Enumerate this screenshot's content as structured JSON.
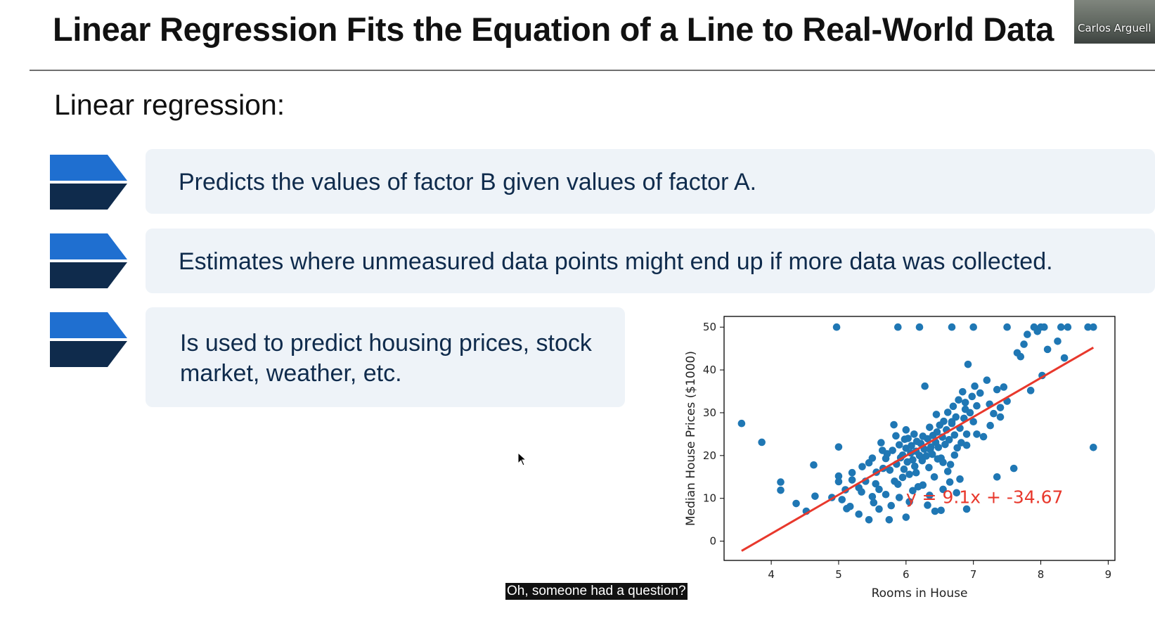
{
  "slide": {
    "title": "Linear Regression Fits the Equation of a Line to Real-World Data",
    "subtitle": "Linear regression:",
    "bullets": [
      {
        "text": "Predicts the values of factor B given values of factor A."
      },
      {
        "text": "Estimates where unmeasured data points might end up if more data was collected."
      },
      {
        "text": "Is used to predict housing prices, stock market, weather, etc."
      }
    ]
  },
  "participant": {
    "name": "Carlos Arguell"
  },
  "caption": {
    "text": "Oh, someone had a question?"
  },
  "colors": {
    "point": "#1f77b4",
    "fit_line": "#e8382c",
    "arrow_top": "#1f6fd0",
    "arrow_bottom": "#0f2b4c",
    "bullet_text": "#0f2b4c",
    "bullet_box": "#eef3f8"
  },
  "icons": {
    "bullet": "chevron-arrow-icon",
    "cursor": "mouse-pointer-icon"
  },
  "chart_data": {
    "type": "scatter",
    "xlabel": "Rooms in House",
    "ylabel": "Median House Prices ($1000)",
    "xlim": [
      3.3,
      9.1
    ],
    "ylim": [
      -4.5,
      52.5
    ],
    "xticks": [
      4,
      5,
      6,
      7,
      8,
      9
    ],
    "yticks": [
      0,
      10,
      20,
      30,
      40,
      50
    ],
    "grid": false,
    "annotation": "y = 9.1x + -34.67",
    "fit_line": {
      "slope": 9.1,
      "intercept": -34.67,
      "x_range": [
        3.56,
        8.78
      ]
    },
    "series": [
      {
        "points": [
          [
            3.56,
            27.5
          ],
          [
            3.86,
            23.1
          ],
          [
            4.14,
            13.8
          ],
          [
            4.14,
            11.9
          ],
          [
            4.37,
            8.8
          ],
          [
            4.52,
            7.0
          ],
          [
            4.63,
            17.8
          ],
          [
            4.65,
            10.5
          ],
          [
            4.9,
            10.2
          ],
          [
            5.0,
            13.9
          ],
          [
            5.0,
            15.2
          ],
          [
            5.0,
            22.0
          ],
          [
            5.05,
            9.7
          ],
          [
            5.1,
            12.0
          ],
          [
            5.12,
            7.6
          ],
          [
            5.17,
            8.1
          ],
          [
            5.2,
            16.0
          ],
          [
            5.3,
            12.5
          ],
          [
            5.34,
            11.5
          ],
          [
            5.4,
            14.0
          ],
          [
            5.45,
            18.3
          ],
          [
            5.5,
            10.4
          ],
          [
            5.52,
            9.0
          ],
          [
            5.56,
            16.1
          ],
          [
            5.6,
            12.1
          ],
          [
            5.63,
            23.0
          ],
          [
            5.66,
            17.0
          ],
          [
            5.7,
            19.3
          ],
          [
            5.72,
            20.4
          ],
          [
            5.76,
            16.6
          ],
          [
            5.8,
            21.2
          ],
          [
            5.82,
            27.2
          ],
          [
            5.83,
            14.0
          ],
          [
            5.86,
            18.0
          ],
          [
            5.88,
            13.3
          ],
          [
            5.9,
            22.5
          ],
          [
            5.92,
            19.5
          ],
          [
            5.95,
            20.1
          ],
          [
            5.97,
            16.8
          ],
          [
            5.98,
            23.8
          ],
          [
            6.0,
            21.7
          ],
          [
            6.02,
            18.5
          ],
          [
            6.03,
            24.0
          ],
          [
            6.05,
            15.6
          ],
          [
            6.07,
            20.6
          ],
          [
            6.08,
            22.3
          ],
          [
            6.1,
            19.0
          ],
          [
            6.12,
            25.0
          ],
          [
            6.13,
            17.5
          ],
          [
            6.15,
            21.0
          ],
          [
            6.16,
            23.3
          ],
          [
            6.18,
            12.7
          ],
          [
            6.2,
            20.0
          ],
          [
            6.22,
            22.8
          ],
          [
            6.24,
            18.8
          ],
          [
            6.25,
            24.5
          ],
          [
            6.27,
            21.5
          ],
          [
            6.28,
            36.2
          ],
          [
            6.3,
            19.9
          ],
          [
            6.32,
            23.9
          ],
          [
            6.34,
            17.2
          ],
          [
            6.35,
            26.6
          ],
          [
            6.37,
            22.0
          ],
          [
            6.39,
            20.3
          ],
          [
            6.4,
            24.7
          ],
          [
            6.42,
            15.0
          ],
          [
            6.44,
            23.1
          ],
          [
            6.46,
            25.5
          ],
          [
            6.48,
            21.9
          ],
          [
            6.5,
            27.1
          ],
          [
            6.52,
            19.4
          ],
          [
            6.54,
            24.3
          ],
          [
            6.56,
            28.0
          ],
          [
            6.58,
            22.6
          ],
          [
            6.6,
            26.0
          ],
          [
            6.62,
            30.1
          ],
          [
            6.64,
            23.7
          ],
          [
            6.66,
            17.9
          ],
          [
            6.68,
            27.5
          ],
          [
            6.7,
            31.5
          ],
          [
            6.72,
            24.8
          ],
          [
            6.74,
            29.0
          ],
          [
            6.76,
            21.8
          ],
          [
            6.78,
            33.0
          ],
          [
            6.8,
            26.4
          ],
          [
            6.82,
            23.0
          ],
          [
            6.84,
            34.9
          ],
          [
            6.86,
            28.7
          ],
          [
            6.88,
            32.4
          ],
          [
            6.9,
            25.0
          ],
          [
            6.92,
            41.3
          ],
          [
            6.95,
            30.0
          ],
          [
            6.98,
            33.8
          ],
          [
            7.0,
            27.9
          ],
          [
            7.02,
            36.2
          ],
          [
            7.05,
            31.6
          ],
          [
            7.1,
            34.6
          ],
          [
            7.15,
            24.4
          ],
          [
            7.2,
            37.6
          ],
          [
            7.24,
            32.0
          ],
          [
            7.3,
            29.8
          ],
          [
            7.35,
            35.4
          ],
          [
            7.4,
            31.2
          ],
          [
            7.45,
            36.0
          ],
          [
            7.5,
            32.7
          ],
          [
            7.6,
            17.0
          ],
          [
            7.65,
            44.0
          ],
          [
            7.7,
            43.1
          ],
          [
            7.75,
            46.0
          ],
          [
            7.8,
            48.3
          ],
          [
            7.85,
            35.2
          ],
          [
            7.9,
            50.0
          ],
          [
            7.95,
            49.0
          ],
          [
            8.0,
            50.0
          ],
          [
            8.02,
            38.7
          ],
          [
            8.05,
            50.0
          ],
          [
            8.1,
            44.8
          ],
          [
            8.25,
            46.7
          ],
          [
            8.3,
            50.0
          ],
          [
            8.35,
            42.8
          ],
          [
            8.4,
            50.0
          ],
          [
            8.7,
            50.0
          ],
          [
            8.78,
            50.0
          ],
          [
            8.78,
            21.9
          ],
          [
            4.97,
            50.0
          ],
          [
            5.88,
            50.0
          ],
          [
            6.2,
            50.0
          ],
          [
            6.68,
            50.0
          ],
          [
            7.0,
            50.0
          ],
          [
            7.5,
            50.0
          ],
          [
            6.05,
            9.2
          ],
          [
            5.6,
            7.5
          ],
          [
            5.45,
            5.0
          ],
          [
            5.75,
            5.0
          ],
          [
            6.0,
            5.6
          ],
          [
            5.3,
            6.3
          ],
          [
            6.32,
            8.4
          ],
          [
            6.43,
            7.0
          ],
          [
            6.52,
            7.2
          ],
          [
            6.65,
            13.8
          ],
          [
            6.8,
            14.5
          ],
          [
            6.9,
            7.5
          ],
          [
            5.7,
            10.9
          ],
          [
            5.9,
            10.2
          ],
          [
            6.1,
            11.8
          ],
          [
            5.55,
            13.4
          ],
          [
            6.35,
            10.7
          ],
          [
            6.55,
            12.1
          ],
          [
            6.75,
            11.3
          ],
          [
            7.35,
            15.0
          ],
          [
            5.78,
            8.3
          ],
          [
            6.25,
            13.1
          ],
          [
            6.62,
            16.3
          ],
          [
            5.2,
            14.3
          ],
          [
            6.47,
            19.2
          ],
          [
            6.15,
            16.0
          ],
          [
            5.95,
            14.9
          ],
          [
            6.36,
            21.4
          ],
          [
            6.55,
            18.4
          ],
          [
            6.72,
            20.1
          ],
          [
            6.9,
            22.4
          ],
          [
            7.05,
            25.0
          ],
          [
            7.25,
            27.0
          ],
          [
            7.4,
            29.0
          ],
          [
            6.0,
            26.0
          ],
          [
            5.85,
            24.6
          ],
          [
            5.65,
            21.2
          ],
          [
            5.5,
            19.4
          ],
          [
            5.35,
            17.4
          ],
          [
            6.45,
            29.6
          ],
          [
            6.68,
            27.9
          ],
          [
            6.88,
            30.8
          ]
        ]
      }
    ]
  }
}
